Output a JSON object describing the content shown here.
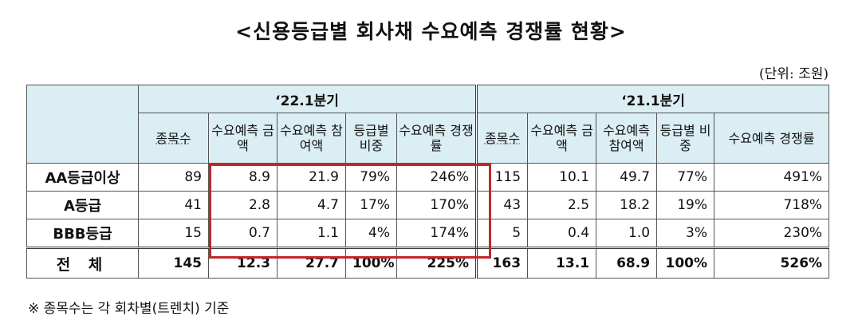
{
  "title": "<신용등급별 회사채 수요예측 경쟁률 현황>",
  "unit": "(단위: 조원)",
  "periods": [
    "‘22.1분기",
    "‘21.1분기"
  ],
  "headers": [
    "종목수",
    "수요예측 금액",
    "수요예측 참여액",
    "등급별 비중",
    "수요예측 경쟁률"
  ],
  "rows": [
    {
      "label": "AA등급이상",
      "q22": [
        "89",
        "8.9",
        "21.9",
        "79%",
        "246%"
      ],
      "q21": [
        "115",
        "10.1",
        "49.7",
        "77%",
        "491%"
      ]
    },
    {
      "label": "A등급",
      "q22": [
        "41",
        "2.8",
        "4.7",
        "17%",
        "170%"
      ],
      "q21": [
        "43",
        "2.5",
        "18.2",
        "19%",
        "718%"
      ]
    },
    {
      "label": "BBB등급",
      "q22": [
        "15",
        "0.7",
        "1.1",
        "4%",
        "174%"
      ],
      "q21": [
        "5",
        "0.4",
        "1.0",
        "3%",
        "230%"
      ]
    }
  ],
  "total": {
    "label": "전 체",
    "q22": [
      "145",
      "12.3",
      "27.7",
      "100%",
      "225%"
    ],
    "q21": [
      "163",
      "13.1",
      "68.9",
      "100%",
      "526%"
    ]
  },
  "note": "※ 종목수는 각 회차별(트렌치) 기준"
}
